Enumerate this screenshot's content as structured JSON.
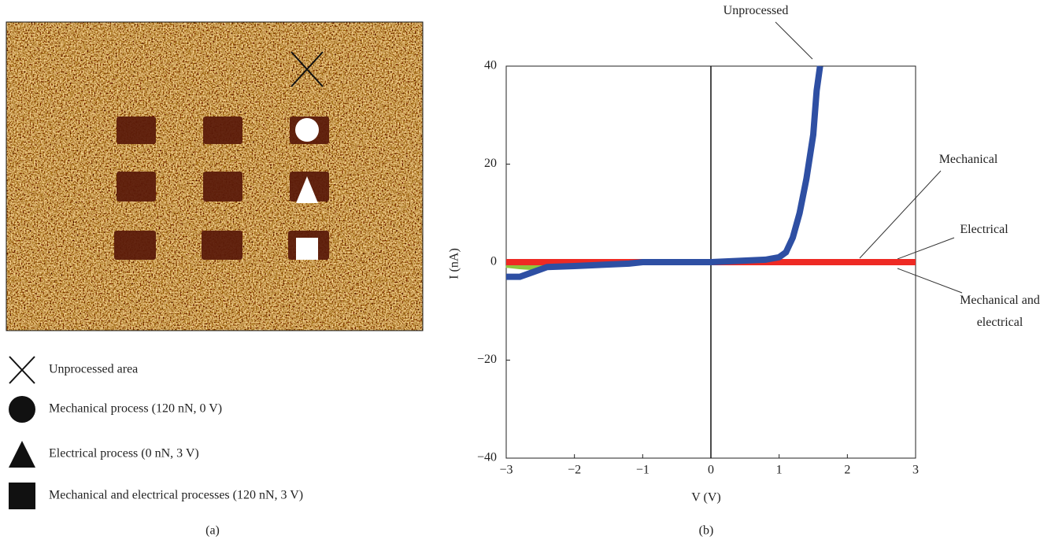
{
  "panel_a": {
    "legend": [
      "Unprocessed area",
      "Mechanical process (120 nN, 0 V)",
      "Electrical process (0 nN, 3 V)",
      "Mechanical and electrical processes (120 nN, 3 V)"
    ],
    "caption": "(a)"
  },
  "chart_data": {
    "type": "line",
    "caption": "(b)",
    "xlabel": "V (V)",
    "ylabel": "I (nA)",
    "xlim": [
      -3,
      3
    ],
    "ylim": [
      -40,
      40
    ],
    "xticks": [
      {
        "value": -3,
        "label": "−3"
      },
      {
        "value": -2,
        "label": "−2"
      },
      {
        "value": -1,
        "label": "−1"
      },
      0,
      1,
      2,
      3
    ],
    "yticks": [
      {
        "value": -40,
        "label": "−40"
      },
      {
        "value": -20,
        "label": "−20"
      },
      0,
      20,
      40
    ],
    "series": [
      {
        "name": "Mechanical",
        "color": "#8dc63f",
        "x": [
          -3,
          -2.8,
          -2.6,
          -2.4,
          -2,
          -1.2,
          0,
          1,
          2,
          3
        ],
        "values": [
          -0.5,
          -0.8,
          -1,
          -0.6,
          -0.3,
          0,
          0,
          0,
          0,
          0
        ]
      },
      {
        "name": "Electrical",
        "color": "#ee2a24",
        "x": [
          -3,
          -2.6,
          -2,
          -1.2,
          0,
          1,
          2,
          3
        ],
        "values": [
          0,
          0,
          0,
          0,
          0,
          0,
          0,
          0
        ]
      },
      {
        "name": "Mechanical and electrical",
        "color": "#ee2a24",
        "x": [
          -3,
          -2.6,
          -2,
          -1.2,
          0,
          1,
          2,
          3
        ],
        "values": [
          0,
          0,
          0,
          0,
          0,
          0,
          0,
          0
        ]
      },
      {
        "name": "Unprocessed",
        "color": "#2e4fa3",
        "x": [
          -3,
          -2.8,
          -2.6,
          -2.4,
          -2,
          -1.2,
          -1,
          0,
          0.8,
          1,
          1.1,
          1.2,
          1.3,
          1.4,
          1.5,
          1.55,
          1.6
        ],
        "values": [
          -3,
          -3,
          -2,
          -1,
          -0.8,
          -0.3,
          0,
          0,
          0.5,
          1,
          2,
          5,
          10,
          17,
          26,
          35,
          40
        ]
      }
    ]
  }
}
